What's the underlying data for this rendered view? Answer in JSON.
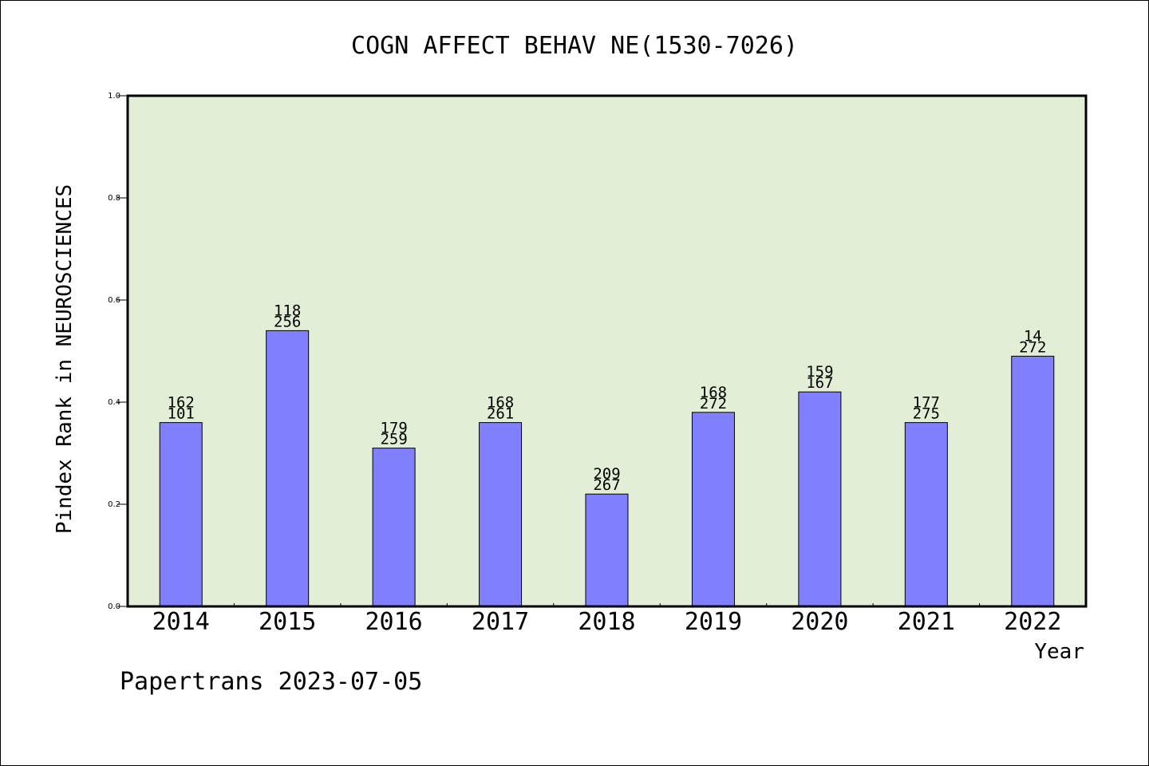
{
  "chart_data": {
    "type": "bar",
    "title": "COGN AFFECT BEHAV NE(1530-7026)",
    "xlabel": "Year",
    "ylabel": "Pindex Rank in NEUROSCIENCES",
    "categories": [
      "2014",
      "2015",
      "2016",
      "2017",
      "2018",
      "2019",
      "2020",
      "2021",
      "2022"
    ],
    "values": [
      0.36,
      0.54,
      0.31,
      0.36,
      0.22,
      0.38,
      0.42,
      0.36,
      0.49
    ],
    "labels_top": [
      "162",
      "118",
      "179",
      "168",
      "209",
      "168",
      "159",
      "177",
      "14"
    ],
    "labels_bottom": [
      "101",
      "256",
      "259",
      "261",
      "267",
      "272",
      "167",
      "275",
      "272"
    ],
    "ylim": [
      0,
      1.0
    ],
    "yticks": [
      "0.0",
      "0.2",
      "0.4",
      "0.6",
      "0.8",
      "1.0"
    ],
    "grid": false,
    "colors": {
      "plot_bg": "#e2efd6",
      "bar": "#8080ff"
    }
  },
  "footer": "Papertrans 2023-07-05"
}
